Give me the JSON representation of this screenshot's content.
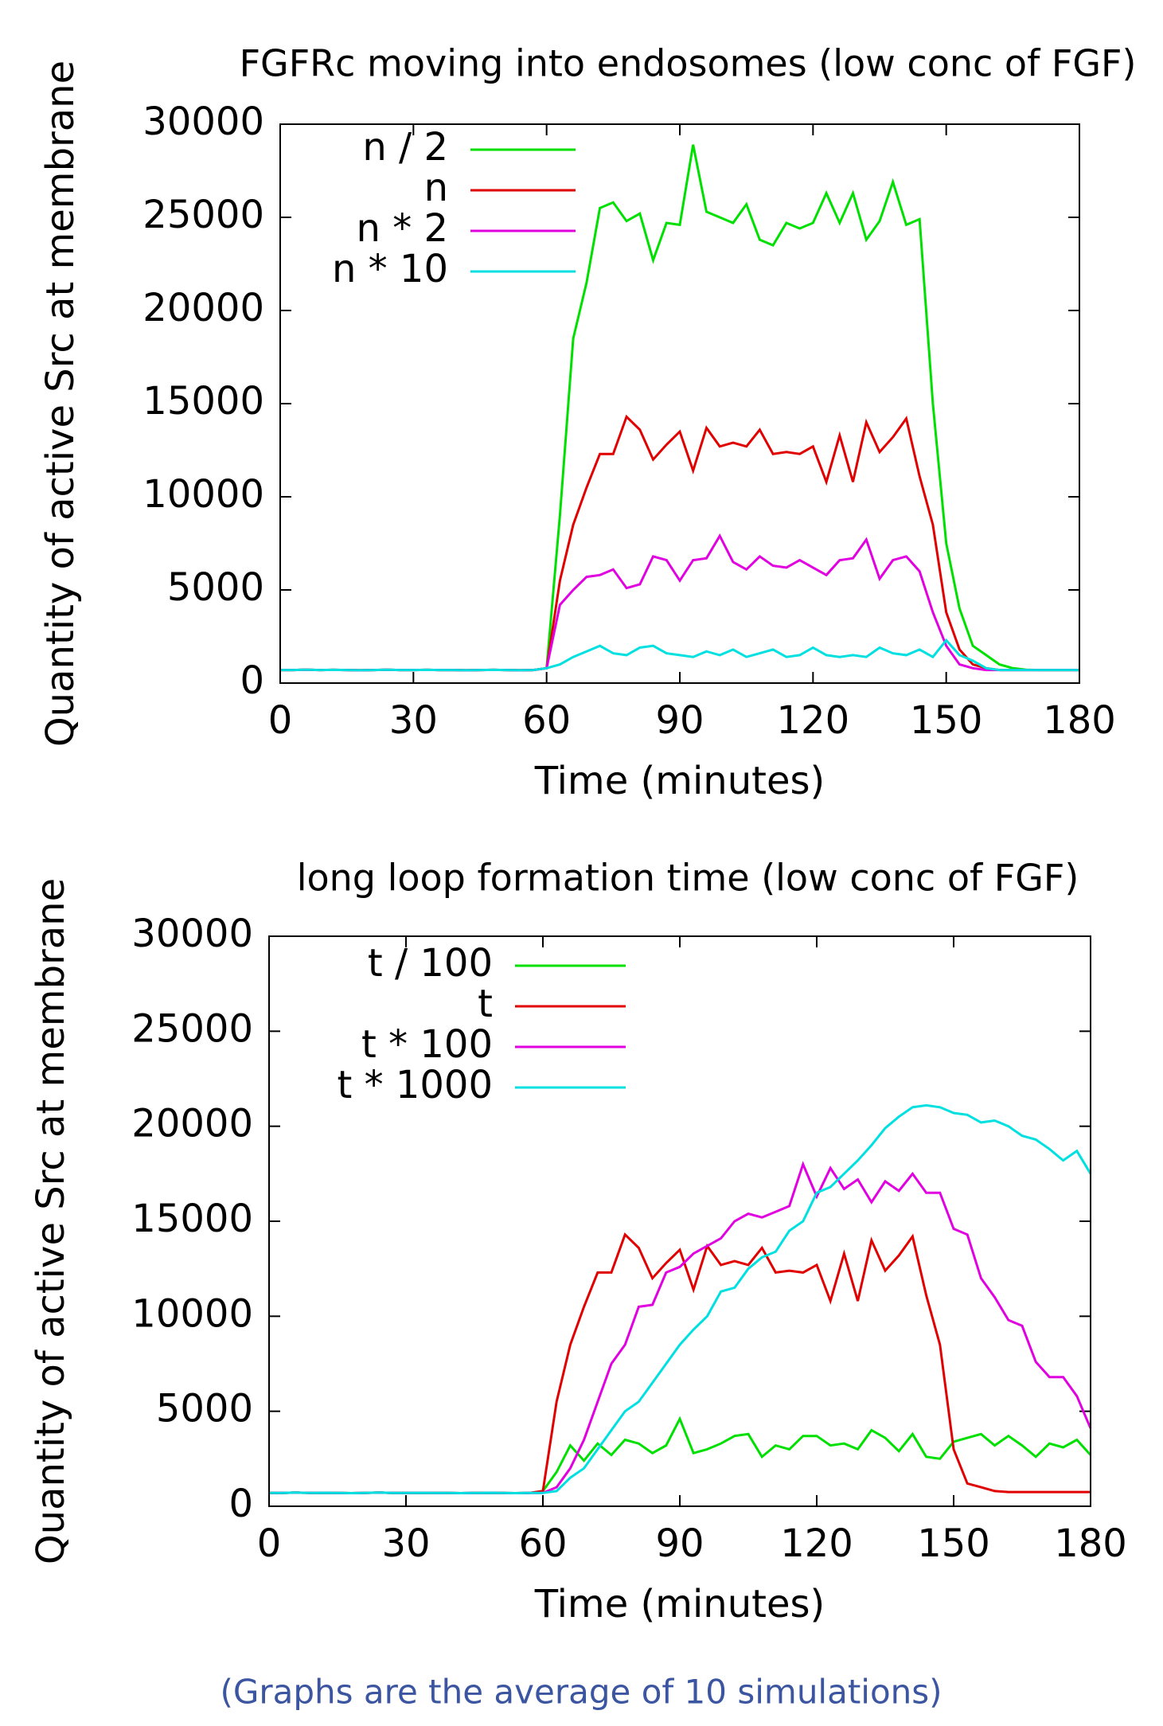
{
  "chart_data": [
    {
      "type": "line",
      "title": "FGFRc moving into endosomes (low conc of FGF)",
      "x_label": "Time (minutes)",
      "y_label": "Quantity of active Src at membrane",
      "x": [
        0,
        3,
        6,
        9,
        12,
        15,
        18,
        21,
        24,
        27,
        30,
        33,
        36,
        39,
        42,
        45,
        48,
        51,
        54,
        57,
        60,
        63,
        66,
        69,
        72,
        75,
        78,
        81,
        84,
        87,
        90,
        93,
        96,
        99,
        102,
        105,
        108,
        111,
        114,
        117,
        120,
        123,
        126,
        129,
        132,
        135,
        138,
        141,
        144,
        147,
        150,
        153,
        156,
        159,
        162,
        165,
        168,
        171,
        174,
        177,
        180
      ],
      "xlim": [
        0,
        180
      ],
      "xticks": [
        0,
        30,
        60,
        90,
        120,
        150,
        180
      ],
      "ylim": [
        0,
        30000
      ],
      "yticks": [
        0,
        5000,
        10000,
        15000,
        20000,
        25000,
        30000
      ],
      "legend": "top-left",
      "series": [
        {
          "name": "n / 2",
          "color": "#00e000",
          "values": [
            700,
            700,
            720,
            700,
            710,
            700,
            690,
            700,
            720,
            700,
            700,
            710,
            700,
            700,
            690,
            700,
            710,
            700,
            690,
            700,
            800,
            9000,
            18500,
            21500,
            25500,
            25800,
            24800,
            25200,
            22700,
            24700,
            24600,
            28900,
            25300,
            25000,
            24700,
            25700,
            23800,
            23500,
            24700,
            24400,
            24700,
            26300,
            24700,
            26300,
            23800,
            24800,
            26900,
            24600,
            24900,
            15000,
            7500,
            4000,
            2000,
            1500,
            1000,
            800,
            720,
            700,
            700,
            700,
            700
          ]
        },
        {
          "name": "n",
          "color": "#e00000",
          "values": [
            700,
            700,
            720,
            700,
            710,
            700,
            690,
            700,
            720,
            700,
            700,
            710,
            700,
            700,
            690,
            700,
            710,
            700,
            690,
            700,
            800,
            5500,
            8500,
            10500,
            12300,
            12300,
            14300,
            13600,
            12000,
            12800,
            13500,
            11400,
            13700,
            12700,
            12900,
            12700,
            13600,
            12300,
            12400,
            12300,
            12700,
            10800,
            13300,
            10800,
            14000,
            12400,
            13200,
            14200,
            11100,
            8500,
            3800,
            1800,
            1000,
            800,
            700,
            700,
            700,
            700,
            700,
            700,
            700
          ]
        },
        {
          "name": "n * 2",
          "color": "#e000e0",
          "values": [
            700,
            700,
            720,
            700,
            710,
            700,
            690,
            700,
            720,
            700,
            700,
            710,
            700,
            700,
            690,
            700,
            710,
            700,
            690,
            700,
            800,
            4200,
            5000,
            5700,
            5800,
            6100,
            5100,
            5300,
            6800,
            6600,
            5500,
            6600,
            6700,
            7900,
            6500,
            6100,
            6800,
            6300,
            6200,
            6600,
            6200,
            5800,
            6600,
            6700,
            7700,
            5600,
            6600,
            6800,
            6000,
            3800,
            2000,
            1000,
            800,
            700,
            700,
            700,
            700,
            700,
            700,
            700,
            700
          ]
        },
        {
          "name": "n * 10",
          "color": "#00e0e0",
          "values": [
            700,
            700,
            720,
            700,
            710,
            700,
            690,
            700,
            720,
            700,
            700,
            710,
            700,
            700,
            690,
            700,
            710,
            700,
            690,
            700,
            800,
            1000,
            1400,
            1700,
            2000,
            1600,
            1500,
            1900,
            2000,
            1600,
            1500,
            1400,
            1700,
            1500,
            1800,
            1400,
            1600,
            1800,
            1400,
            1500,
            1900,
            1500,
            1400,
            1500,
            1400,
            1900,
            1600,
            1500,
            1800,
            1400,
            2300,
            1500,
            1200,
            800,
            700,
            700,
            700,
            700,
            700,
            700,
            700
          ]
        }
      ]
    },
    {
      "type": "line",
      "title": "long loop formation time (low conc of FGF)",
      "x_label": "Time (minutes)",
      "y_label": "Quantity of active Src at membrane",
      "x": [
        0,
        3,
        6,
        9,
        12,
        15,
        18,
        21,
        24,
        27,
        30,
        33,
        36,
        39,
        42,
        45,
        48,
        51,
        54,
        57,
        60,
        63,
        66,
        69,
        72,
        75,
        78,
        81,
        84,
        87,
        90,
        93,
        96,
        99,
        102,
        105,
        108,
        111,
        114,
        117,
        120,
        123,
        126,
        129,
        132,
        135,
        138,
        141,
        144,
        147,
        150,
        153,
        156,
        159,
        162,
        165,
        168,
        171,
        174,
        177,
        180
      ],
      "xlim": [
        0,
        180
      ],
      "xticks": [
        0,
        30,
        60,
        90,
        120,
        150,
        180
      ],
      "ylim": [
        0,
        30000
      ],
      "yticks": [
        0,
        5000,
        10000,
        15000,
        20000,
        25000,
        30000
      ],
      "legend": "top-left",
      "series": [
        {
          "name": "t / 100",
          "color": "#00e000",
          "values": [
            700,
            700,
            720,
            700,
            710,
            700,
            690,
            700,
            720,
            700,
            700,
            710,
            700,
            700,
            690,
            700,
            710,
            700,
            690,
            700,
            800,
            1800,
            3200,
            2400,
            3300,
            2700,
            3500,
            3300,
            2800,
            3200,
            4600,
            2800,
            3000,
            3300,
            3700,
            3800,
            2600,
            3200,
            3000,
            3700,
            3700,
            3200,
            3300,
            3000,
            4000,
            3600,
            2900,
            3800,
            2600,
            2500,
            3400,
            3600,
            3800,
            3200,
            3700,
            3200,
            2600,
            3300,
            3100,
            3500,
            2700
          ]
        },
        {
          "name": "t",
          "color": "#e00000",
          "values": [
            700,
            700,
            720,
            700,
            710,
            700,
            690,
            700,
            720,
            700,
            700,
            710,
            700,
            700,
            690,
            700,
            710,
            700,
            690,
            700,
            800,
            5500,
            8500,
            10500,
            12300,
            12300,
            14300,
            13600,
            12000,
            12800,
            13500,
            11400,
            13700,
            12700,
            12900,
            12700,
            13600,
            12300,
            12400,
            12300,
            12700,
            10800,
            13300,
            10800,
            14000,
            12400,
            13200,
            14200,
            11100,
            8500,
            3000,
            1200,
            1000,
            800,
            750,
            750,
            750,
            750,
            750,
            750,
            750
          ]
        },
        {
          "name": "t * 100",
          "color": "#e000e0",
          "values": [
            700,
            700,
            720,
            700,
            710,
            700,
            690,
            700,
            720,
            700,
            700,
            710,
            700,
            700,
            690,
            700,
            710,
            700,
            690,
            700,
            700,
            1000,
            2000,
            3500,
            5500,
            7500,
            8500,
            10500,
            10600,
            12300,
            12600,
            13300,
            13700,
            14100,
            15000,
            15400,
            15200,
            15500,
            15800,
            18000,
            16300,
            17800,
            16700,
            17200,
            16000,
            17100,
            16600,
            17500,
            16500,
            16500,
            14600,
            14300,
            12000,
            11000,
            9800,
            9500,
            7600,
            6800,
            6800,
            5800,
            4100
          ]
        },
        {
          "name": "t * 1000",
          "color": "#00e0e0",
          "values": [
            700,
            700,
            720,
            700,
            710,
            700,
            690,
            700,
            720,
            700,
            700,
            710,
            700,
            700,
            690,
            700,
            710,
            700,
            690,
            700,
            700,
            800,
            1500,
            2000,
            3000,
            4000,
            5000,
            5500,
            6500,
            7500,
            8500,
            9300,
            10000,
            11300,
            11500,
            12500,
            13100,
            13400,
            14500,
            15000,
            16500,
            16800,
            17500,
            18200,
            19000,
            19900,
            20500,
            21000,
            21100,
            21000,
            20700,
            20600,
            20200,
            20300,
            20000,
            19500,
            19300,
            18800,
            18200,
            18700,
            17500
          ]
        }
      ]
    }
  ],
  "caption": "(Graphs are the average of 10 simulations)"
}
